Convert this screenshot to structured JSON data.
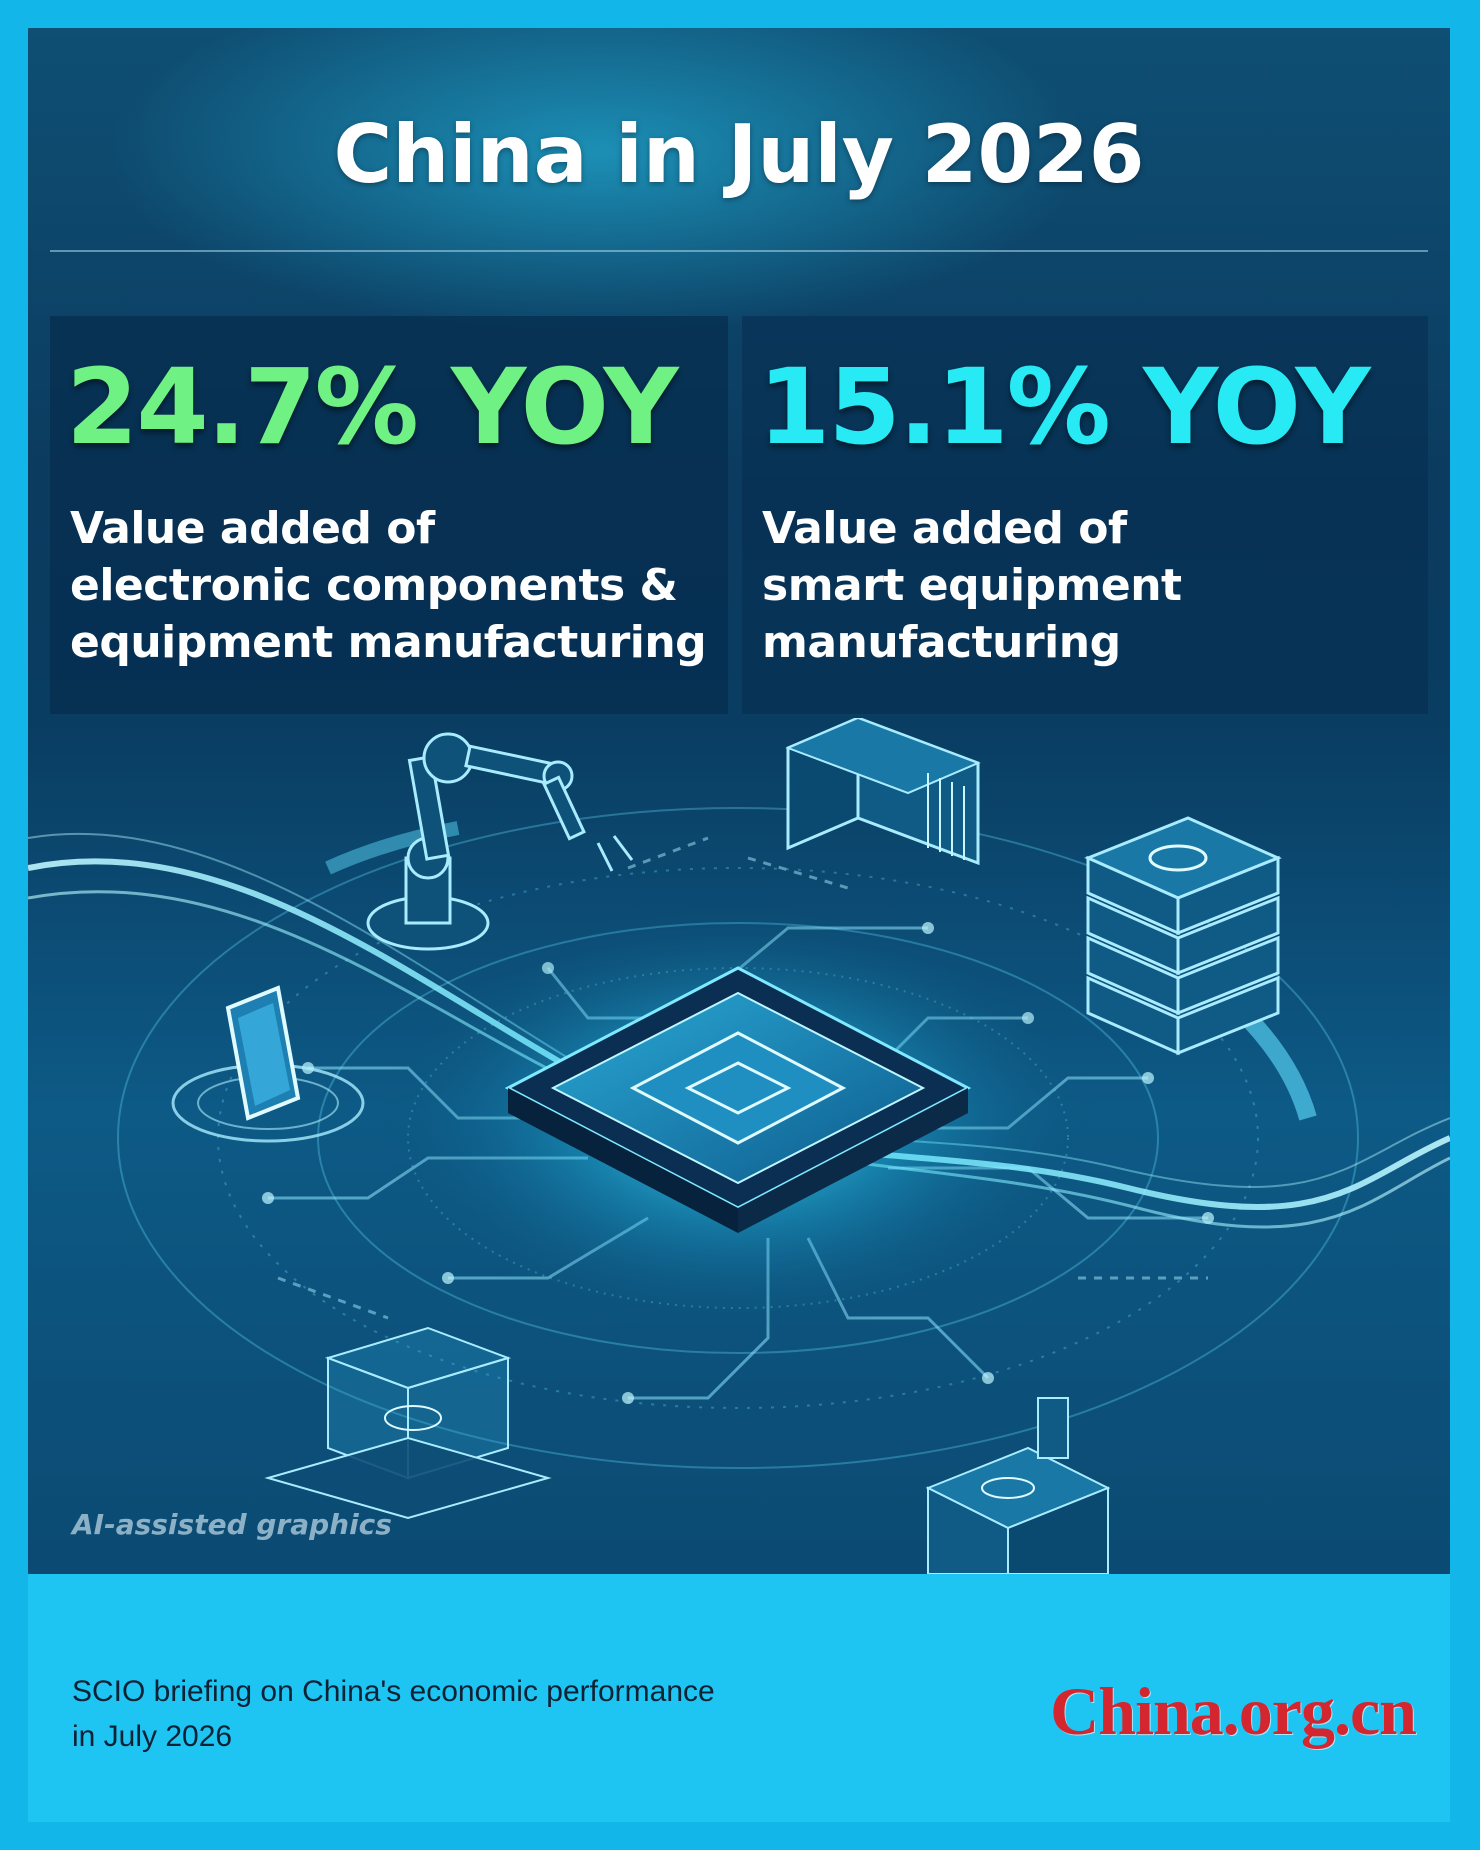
{
  "header": {
    "title": "China in July 2026"
  },
  "stats": [
    {
      "value": "24.7% YOY",
      "description_lines": [
        "Value added of",
        "electronic components &",
        "equipment manufacturing"
      ]
    },
    {
      "value": "15.1% YOY",
      "description_lines": [
        "Value added of",
        "smart equipment",
        "manufacturing"
      ]
    }
  ],
  "illustration": {
    "watermark": "AI-assisted graphics"
  },
  "footer": {
    "source_lines": [
      "SCIO briefing on China's economic performance",
      "in July 2026"
    ],
    "logo": "China.org.cn"
  },
  "colors": {
    "frame": "#12b6e8",
    "panel": "#0b3b5f",
    "stat_green": "#6ff283",
    "stat_cyan": "#27eaf4",
    "logo_red": "#d3262e"
  },
  "icons": [
    "robot-arm-icon",
    "server-tower-icon",
    "server-rack-icon",
    "microchip-icon",
    "smartphone-icon",
    "glass-cube-icon",
    "device-box-icon"
  ]
}
